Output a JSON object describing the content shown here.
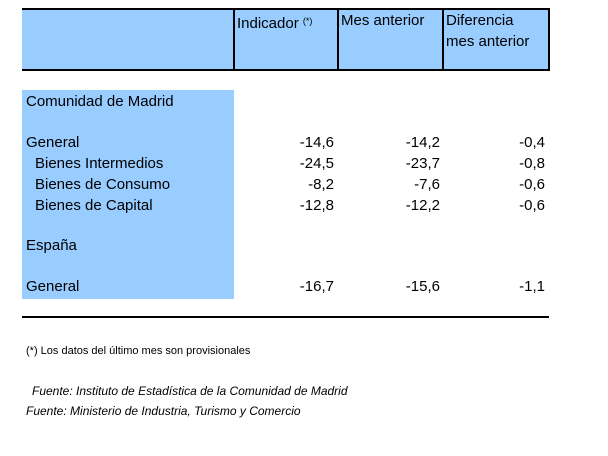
{
  "header": {
    "indicador": "Indicador",
    "indicador_mark": "(*)",
    "mes_anterior": "Mes anterior",
    "diferencia_line1": "Diferencia",
    "diferencia_line2": "mes anterior"
  },
  "madrid": {
    "title": "Comunidad de Madrid",
    "rows": [
      {
        "label": "General",
        "indicador": "-14,6",
        "mes_anterior": "-14,2",
        "diferencia": "-0,4"
      },
      {
        "label": "Bienes Intermedios",
        "indicador": "-24,5",
        "mes_anterior": "-23,7",
        "diferencia": "-0,8"
      },
      {
        "label": "Bienes de Consumo",
        "indicador": "-8,2",
        "mes_anterior": "-7,6",
        "diferencia": "-0,6"
      },
      {
        "label": "Bienes de Capital",
        "indicador": "-12,8",
        "mes_anterior": "-12,2",
        "diferencia": "-0,6"
      }
    ]
  },
  "espana": {
    "title": "España",
    "rows": [
      {
        "label": "General",
        "indicador": "-16,7",
        "mes_anterior": "-15,6",
        "diferencia": "-1,1"
      }
    ]
  },
  "footnote": "(*) Los datos del último mes son provisionales",
  "sources": [
    "Fuente: Instituto de Estadística de la Comunidad de Madrid",
    "Fuente: Ministerio de Industria, Turismo y Comercio"
  ]
}
